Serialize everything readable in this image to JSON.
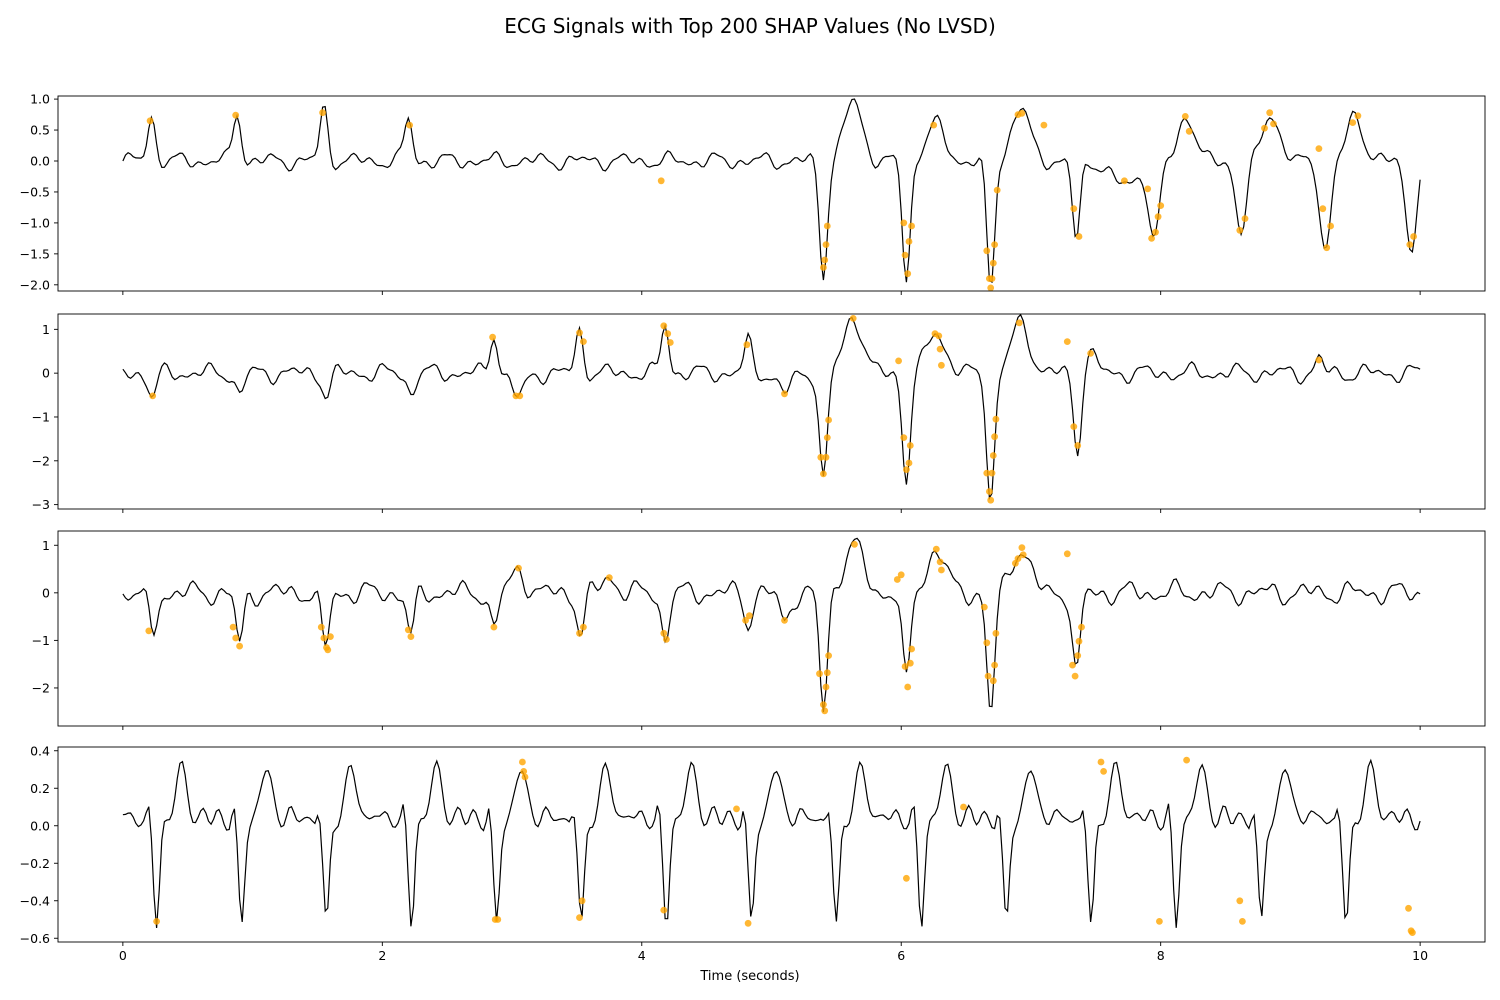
{
  "title": "ECG Signals with Top 200 SHAP Values (No LVSD)",
  "chart_data": {
    "type": "line",
    "title": "ECG Signals with Top 200 SHAP Values (No LVSD)",
    "xlabel": "Time (seconds)",
    "xlim": [
      -0.5,
      10.5
    ],
    "xticks": [
      0,
      2,
      4,
      6,
      8,
      10
    ],
    "colors": {
      "signal": "#000000",
      "shap_marker": "#ffa500"
    },
    "grid": false,
    "sample_interval_s": 0.02,
    "panels": [
      {
        "ylim": [
          -2.1,
          1.05
        ],
        "yticks": [
          1.0,
          0.5,
          0.0,
          -0.5,
          -1.0,
          -1.5,
          -2.0
        ],
        "ytick_labels": [
          "1.0",
          "0.5",
          "0.0",
          "−0.5",
          "−1.0",
          "−1.5",
          "−2.0"
        ],
        "beats": [
          {
            "t": 0.22,
            "a": 0.72,
            "w": 0.03
          },
          {
            "t": 0.88,
            "a": 0.8,
            "w": 0.03
          },
          {
            "t": 1.55,
            "a": 0.85,
            "w": 0.03
          },
          {
            "t": 2.2,
            "a": 0.68,
            "w": 0.03
          },
          {
            "t": 5.4,
            "a": -1.85,
            "w": 0.03
          },
          {
            "t": 5.63,
            "a": 0.95,
            "w": 0.07
          },
          {
            "t": 6.04,
            "a": -1.95,
            "w": 0.03
          },
          {
            "t": 6.26,
            "a": 0.6,
            "w": 0.07
          },
          {
            "t": 6.69,
            "a": -2.1,
            "w": 0.03
          },
          {
            "t": 6.92,
            "a": 0.85,
            "w": 0.07
          },
          {
            "t": 7.35,
            "a": -1.3,
            "w": 0.03
          },
          {
            "t": 7.72,
            "a": -0.4,
            "w": 0.1
          },
          {
            "t": 7.95,
            "a": -1.3,
            "w": 0.04
          },
          {
            "t": 8.2,
            "a": 0.75,
            "w": 0.06
          },
          {
            "t": 8.62,
            "a": -1.15,
            "w": 0.04
          },
          {
            "t": 8.85,
            "a": 0.8,
            "w": 0.06
          },
          {
            "t": 9.27,
            "a": -1.45,
            "w": 0.04
          },
          {
            "t": 9.5,
            "a": 0.75,
            "w": 0.06
          },
          {
            "t": 9.93,
            "a": -1.4,
            "w": 0.04
          }
        ],
        "shap_points": [
          [
            0.21,
            0.65
          ],
          [
            0.87,
            0.74
          ],
          [
            1.54,
            0.78
          ],
          [
            2.21,
            0.58
          ],
          [
            4.15,
            -0.32
          ],
          [
            5.4,
            -1.72
          ],
          [
            5.41,
            -1.6
          ],
          [
            5.42,
            -1.35
          ],
          [
            5.43,
            -1.05
          ],
          [
            6.02,
            -1.0
          ],
          [
            6.03,
            -1.52
          ],
          [
            6.05,
            -1.82
          ],
          [
            6.06,
            -1.3
          ],
          [
            6.08,
            -1.05
          ],
          [
            6.25,
            0.58
          ],
          [
            6.66,
            -1.45
          ],
          [
            6.68,
            -1.9
          ],
          [
            6.69,
            -2.05
          ],
          [
            6.7,
            -1.9
          ],
          [
            6.71,
            -1.65
          ],
          [
            6.72,
            -1.35
          ],
          [
            6.74,
            -0.47
          ],
          [
            6.9,
            0.75
          ],
          [
            6.93,
            0.77
          ],
          [
            7.1,
            0.58
          ],
          [
            7.33,
            -0.77
          ],
          [
            7.37,
            -1.22
          ],
          [
            7.72,
            -0.32
          ],
          [
            7.9,
            -0.45
          ],
          [
            7.93,
            -1.25
          ],
          [
            7.96,
            -1.15
          ],
          [
            7.98,
            -0.9
          ],
          [
            8.0,
            -0.72
          ],
          [
            8.19,
            0.72
          ],
          [
            8.22,
            0.48
          ],
          [
            8.61,
            -1.12
          ],
          [
            8.65,
            -0.93
          ],
          [
            8.8,
            0.53
          ],
          [
            8.84,
            0.78
          ],
          [
            8.87,
            0.6
          ],
          [
            9.22,
            0.2
          ],
          [
            9.25,
            -0.77
          ],
          [
            9.28,
            -1.4
          ],
          [
            9.31,
            -1.05
          ],
          [
            9.48,
            0.62
          ],
          [
            9.52,
            0.73
          ],
          [
            9.92,
            -1.35
          ],
          [
            9.95,
            -1.22
          ]
        ]
      },
      {
        "ylim": [
          -3.1,
          1.35
        ],
        "yticks": [
          1,
          0,
          -1,
          -2,
          -3
        ],
        "ytick_labels": [
          "1",
          "0",
          "−1",
          "−2",
          "−3"
        ],
        "beats": [
          {
            "t": 0.23,
            "a": -0.55,
            "w": 0.03
          },
          {
            "t": 0.9,
            "a": -0.5,
            "w": 0.03
          },
          {
            "t": 1.57,
            "a": -0.5,
            "w": 0.03
          },
          {
            "t": 2.22,
            "a": -0.45,
            "w": 0.03
          },
          {
            "t": 2.86,
            "a": 0.9,
            "w": 0.03
          },
          {
            "t": 3.05,
            "a": -0.55,
            "w": 0.05
          },
          {
            "t": 3.52,
            "a": 0.95,
            "w": 0.03
          },
          {
            "t": 4.18,
            "a": 1.1,
            "w": 0.03
          },
          {
            "t": 4.82,
            "a": 0.7,
            "w": 0.03
          },
          {
            "t": 5.1,
            "a": -0.45,
            "w": 0.05
          },
          {
            "t": 5.4,
            "a": -2.5,
            "w": 0.03
          },
          {
            "t": 5.63,
            "a": 1.3,
            "w": 0.07
          },
          {
            "t": 6.04,
            "a": -2.45,
            "w": 0.03
          },
          {
            "t": 6.27,
            "a": 0.95,
            "w": 0.07
          },
          {
            "t": 6.69,
            "a": -2.9,
            "w": 0.03
          },
          {
            "t": 6.92,
            "a": 1.15,
            "w": 0.07
          },
          {
            "t": 7.36,
            "a": -1.85,
            "w": 0.03
          },
          {
            "t": 7.45,
            "a": 0.45,
            "w": 0.05
          },
          {
            "t": 9.22,
            "a": 0.3,
            "w": 0.03
          }
        ],
        "shap_points": [
          [
            0.23,
            -0.52
          ],
          [
            2.85,
            0.82
          ],
          [
            3.03,
            -0.52
          ],
          [
            3.06,
            -0.52
          ],
          [
            3.52,
            0.92
          ],
          [
            3.55,
            0.72
          ],
          [
            4.17,
            1.08
          ],
          [
            4.2,
            0.9
          ],
          [
            4.22,
            0.7
          ],
          [
            4.81,
            0.65
          ],
          [
            5.1,
            -0.47
          ],
          [
            5.38,
            -1.92
          ],
          [
            5.4,
            -2.3
          ],
          [
            5.42,
            -1.92
          ],
          [
            5.43,
            -1.47
          ],
          [
            5.44,
            -1.07
          ],
          [
            5.63,
            1.25
          ],
          [
            5.98,
            0.28
          ],
          [
            6.02,
            -1.47
          ],
          [
            6.04,
            -2.2
          ],
          [
            6.06,
            -2.05
          ],
          [
            6.07,
            -1.65
          ],
          [
            6.26,
            0.9
          ],
          [
            6.29,
            0.85
          ],
          [
            6.3,
            0.55
          ],
          [
            6.31,
            0.18
          ],
          [
            6.66,
            -2.28
          ],
          [
            6.68,
            -2.7
          ],
          [
            6.69,
            -2.9
          ],
          [
            6.7,
            -2.28
          ],
          [
            6.71,
            -1.88
          ],
          [
            6.72,
            -1.45
          ],
          [
            6.73,
            -1.05
          ],
          [
            6.91,
            1.15
          ],
          [
            7.28,
            0.72
          ],
          [
            7.33,
            -1.22
          ],
          [
            7.36,
            -1.65
          ],
          [
            7.46,
            0.45
          ],
          [
            9.22,
            0.3
          ]
        ]
      },
      {
        "ylim": [
          -2.8,
          1.3
        ],
        "yticks": [
          1,
          0,
          -1,
          -2
        ],
        "ytick_labels": [
          "1",
          "0",
          "−1",
          "−2"
        ],
        "beats": [
          {
            "t": 0.23,
            "a": -0.95,
            "w": 0.03
          },
          {
            "t": 0.9,
            "a": -1.1,
            "w": 0.03
          },
          {
            "t": 1.56,
            "a": -1.2,
            "w": 0.03
          },
          {
            "t": 2.22,
            "a": -0.92,
            "w": 0.03
          },
          {
            "t": 2.86,
            "a": -0.75,
            "w": 0.03
          },
          {
            "t": 3.05,
            "a": 0.5,
            "w": 0.05
          },
          {
            "t": 3.53,
            "a": -0.85,
            "w": 0.03
          },
          {
            "t": 3.75,
            "a": 0.35,
            "w": 0.05
          },
          {
            "t": 4.18,
            "a": -0.98,
            "w": 0.03
          },
          {
            "t": 4.82,
            "a": -0.62,
            "w": 0.03
          },
          {
            "t": 5.1,
            "a": -0.6,
            "w": 0.04
          },
          {
            "t": 5.4,
            "a": -2.5,
            "w": 0.03
          },
          {
            "t": 5.63,
            "a": 1.05,
            "w": 0.07
          },
          {
            "t": 6.04,
            "a": -1.95,
            "w": 0.03
          },
          {
            "t": 6.27,
            "a": 0.9,
            "w": 0.07
          },
          {
            "t": 6.69,
            "a": -2.6,
            "w": 0.03
          },
          {
            "t": 6.92,
            "a": 0.95,
            "w": 0.07
          },
          {
            "t": 7.35,
            "a": -1.75,
            "w": 0.03
          }
        ],
        "shap_points": [
          [
            0.2,
            -0.8
          ],
          [
            0.85,
            -0.72
          ],
          [
            0.87,
            -0.95
          ],
          [
            0.9,
            -1.12
          ],
          [
            1.53,
            -0.72
          ],
          [
            1.55,
            -0.95
          ],
          [
            1.57,
            -1.15
          ],
          [
            1.58,
            -1.2
          ],
          [
            1.6,
            -0.92
          ],
          [
            2.2,
            -0.78
          ],
          [
            2.22,
            -0.92
          ],
          [
            2.86,
            -0.72
          ],
          [
            3.05,
            0.52
          ],
          [
            3.52,
            -0.85
          ],
          [
            3.55,
            -0.72
          ],
          [
            3.75,
            0.32
          ],
          [
            4.17,
            -0.85
          ],
          [
            4.19,
            -0.98
          ],
          [
            4.8,
            -0.58
          ],
          [
            4.83,
            -0.48
          ],
          [
            5.1,
            -0.58
          ],
          [
            5.37,
            -1.7
          ],
          [
            5.4,
            -2.35
          ],
          [
            5.41,
            -2.48
          ],
          [
            5.42,
            -1.98
          ],
          [
            5.43,
            -1.68
          ],
          [
            5.44,
            -1.32
          ],
          [
            5.64,
            1.02
          ],
          [
            5.97,
            0.28
          ],
          [
            6.0,
            0.38
          ],
          [
            6.03,
            -1.55
          ],
          [
            6.05,
            -1.98
          ],
          [
            6.07,
            -1.48
          ],
          [
            6.08,
            -1.18
          ],
          [
            6.27,
            0.92
          ],
          [
            6.3,
            0.65
          ],
          [
            6.31,
            0.48
          ],
          [
            6.64,
            -0.3
          ],
          [
            6.66,
            -1.05
          ],
          [
            6.67,
            -1.75
          ],
          [
            6.71,
            -1.85
          ],
          [
            6.72,
            -1.52
          ],
          [
            6.73,
            -0.85
          ],
          [
            6.88,
            0.62
          ],
          [
            6.9,
            0.72
          ],
          [
            6.93,
            0.95
          ],
          [
            6.94,
            0.8
          ],
          [
            7.28,
            0.82
          ],
          [
            7.32,
            -1.52
          ],
          [
            7.34,
            -1.75
          ],
          [
            7.36,
            -1.32
          ],
          [
            7.37,
            -1.02
          ],
          [
            7.39,
            -0.72
          ]
        ]
      },
      {
        "ylim": [
          -0.62,
          0.42
        ],
        "yticks": [
          0.4,
          0.2,
          0.0,
          -0.2,
          -0.4,
          -0.6
        ],
        "ytick_labels": [
          "0.4",
          "0.2",
          "0.0",
          "−0.2",
          "−0.4",
          "−0.6"
        ],
        "shap_points": [
          [
            0.26,
            -0.51
          ],
          [
            2.87,
            -0.5
          ],
          [
            2.89,
            -0.5
          ],
          [
            3.08,
            0.34
          ],
          [
            3.09,
            0.29
          ],
          [
            3.1,
            0.26
          ],
          [
            3.52,
            -0.49
          ],
          [
            3.54,
            -0.4
          ],
          [
            4.17,
            -0.45
          ],
          [
            4.73,
            0.09
          ],
          [
            4.82,
            -0.52
          ],
          [
            6.04,
            -0.28
          ],
          [
            6.48,
            0.1
          ],
          [
            7.54,
            0.34
          ],
          [
            7.56,
            0.29
          ],
          [
            7.99,
            -0.51
          ],
          [
            8.2,
            0.35
          ],
          [
            8.61,
            -0.4
          ],
          [
            8.63,
            -0.51
          ],
          [
            9.91,
            -0.44
          ],
          [
            9.93,
            -0.56
          ],
          [
            9.94,
            -0.57
          ]
        ]
      }
    ]
  }
}
